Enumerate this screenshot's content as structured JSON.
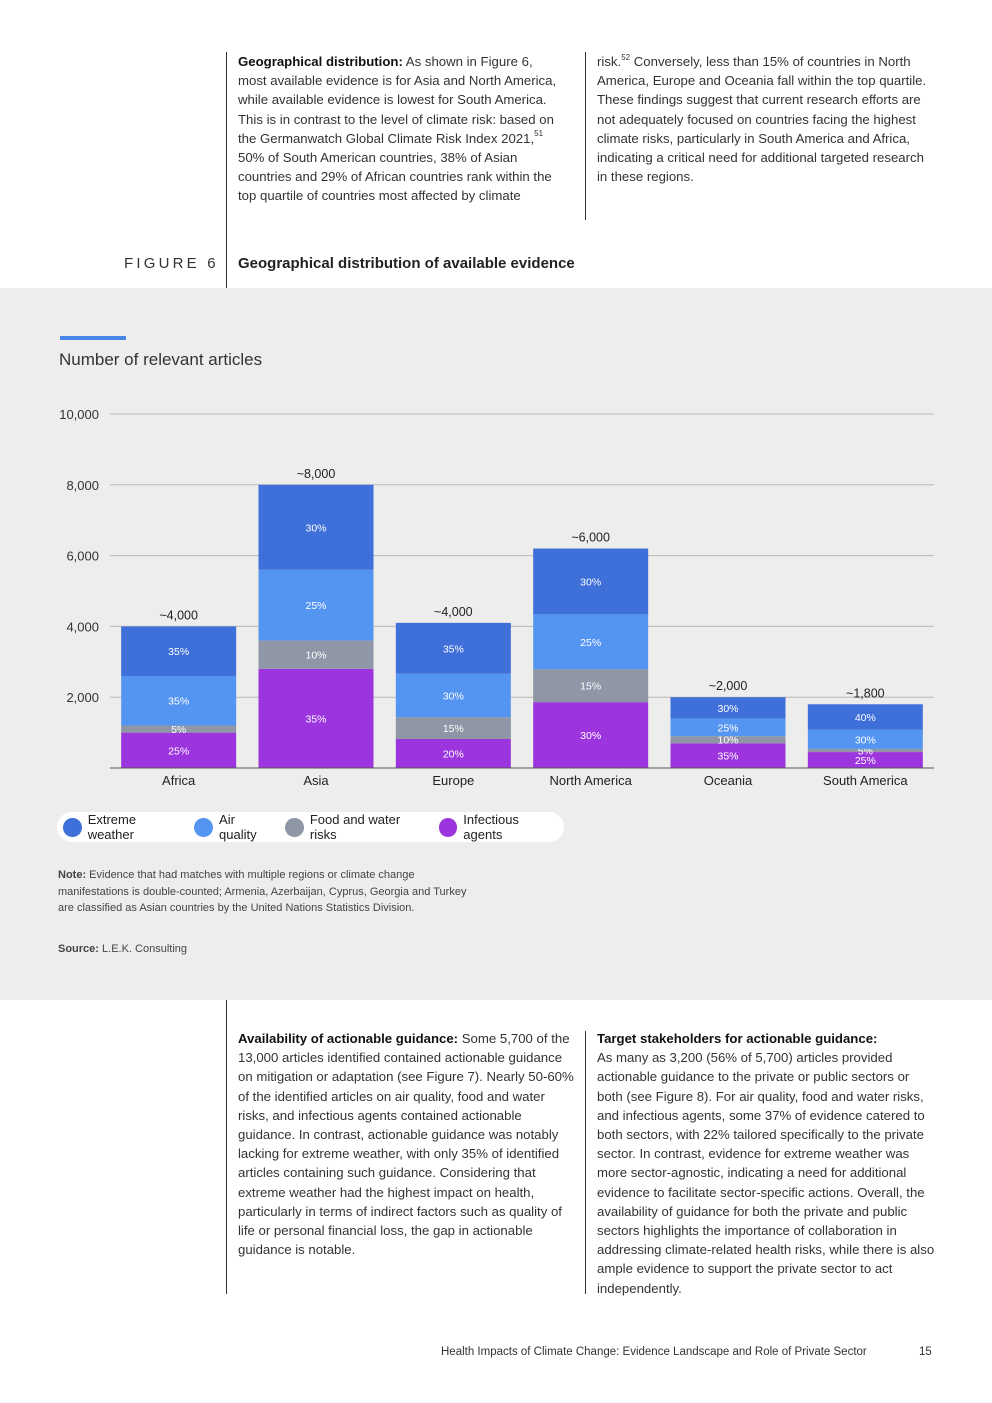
{
  "intro": {
    "left": {
      "lead": "Geographical distribution:",
      "text_a": " As shown in Figure 6, most available evidence is for Asia and North America, while available evidence is lowest for South America. This is in contrast to the level of climate risk: based on the Germanwatch Global Climate Risk Index 2021,",
      "ref": "51",
      "text_b": " 50% of South American countries, 38% of Asian countries and 29% of African countries rank within the top quartile of countries most affected by climate"
    },
    "right": {
      "text_a": "risk.",
      "ref": "52",
      "text_b": " Conversely, less than 15% of countries in North America, Europe and Oceania fall within the top quartile. These findings suggest that current research efforts are not adequately focused on countries facing the highest climate risks, particularly in South America and Africa, indicating a critical need for additional targeted research in these regions."
    }
  },
  "figure": {
    "label": "FIGURE 6",
    "title": "Geographical distribution of available evidence",
    "chart_title": "Number of relevant articles",
    "note_lead": "Note:",
    "note_text": " Evidence that had matches with multiple regions or climate change manifestations is double-counted; Armenia, Azerbaijan, Cyprus, Georgia and Turkey are classified as Asian countries by the United Nations Statistics Division.",
    "source_lead": "Source:",
    "source_text": " L.E.K. Consulting"
  },
  "chart_data": {
    "type": "bar",
    "stacked": true,
    "title": "Number of relevant articles",
    "xlabel": "",
    "ylabel": "Number of relevant articles",
    "ylim": [
      0,
      10000
    ],
    "yticks": [
      2000,
      4000,
      6000,
      8000,
      10000
    ],
    "ytick_labels": [
      "2,000",
      "4,000",
      "6,000",
      "8,000",
      "10,000"
    ],
    "grid": true,
    "legend_position": "bottom-left",
    "categories": [
      "Africa",
      "Asia",
      "Europe",
      "North America",
      "Oceania",
      "South America"
    ],
    "totals": [
      4000,
      8000,
      4100,
      6200,
      2000,
      1800
    ],
    "total_labels": [
      "~4,000",
      "~8,000",
      "~4,000",
      "~6,000",
      "~2,000",
      "~1,800"
    ],
    "series": [
      {
        "name": "Infectious agents",
        "color": "#9c35de",
        "pct": [
          25,
          35,
          20,
          30,
          35,
          25
        ],
        "labels": [
          "25%",
          "35%",
          "20%",
          "30%",
          "35%",
          "25%"
        ]
      },
      {
        "name": "Food and water risks",
        "color": "#8f96a5",
        "pct": [
          5,
          10,
          15,
          15,
          10,
          5
        ],
        "labels": [
          "5%",
          "10%",
          "15%",
          "15%",
          "10%",
          "5%"
        ]
      },
      {
        "name": "Air quality",
        "color": "#5595f2",
        "pct": [
          35,
          25,
          30,
          25,
          25,
          30
        ],
        "labels": [
          "35%",
          "25%",
          "30%",
          "25%",
          "25%",
          "30%"
        ]
      },
      {
        "name": "Extreme weather",
        "color": "#3f6fd8",
        "pct": [
          35,
          30,
          35,
          30,
          30,
          40
        ],
        "labels": [
          "35%",
          "30%",
          "35%",
          "30%",
          "30%",
          "40%"
        ]
      }
    ]
  },
  "legend": [
    {
      "label": "Extreme weather",
      "color": "#3f6fd8"
    },
    {
      "label": "Air quality",
      "color": "#5595f2"
    },
    {
      "label": "Food and water risks",
      "color": "#8f96a5"
    },
    {
      "label": "Infectious agents",
      "color": "#9c35de"
    }
  ],
  "body": {
    "left": {
      "lead": "Availability of actionable guidance:",
      "text": " Some 5,700 of the 13,000 articles identified contained actionable guidance on mitigation or adaptation (see Figure 7). Nearly 50-60% of the identified articles on air quality, food and water risks, and infectious agents contained actionable guidance. In contrast, actionable guidance was notably lacking for extreme weather, with only 35% of identified articles containing such guidance. Considering that extreme weather had the highest impact on health, particularly in terms of indirect factors such as quality of life or personal financial loss, the gap in actionable guidance is notable."
    },
    "right": {
      "lead": "Target stakeholders for actionable guidance:",
      "text": "As many as 3,200 (56% of 5,700) articles provided actionable guidance to the private or public sectors or both (see Figure 8). For air quality, food and water risks, and infectious agents, some 37% of evidence catered to both sectors, with 22% tailored specifically to the private sector. In contrast, evidence for extreme weather was more sector-agnostic, indicating a need for additional evidence to facilitate sector-specific actions. Overall, the availability of guidance for both the private and public sectors highlights the importance of collaboration in addressing climate-related health risks, while there is also ample evidence to support the private sector to act independently."
    }
  },
  "footer": {
    "title": "Health Impacts of Climate Change:",
    "subtitle": " Evidence Landscape and Role of Private Sector",
    "page": "15"
  }
}
